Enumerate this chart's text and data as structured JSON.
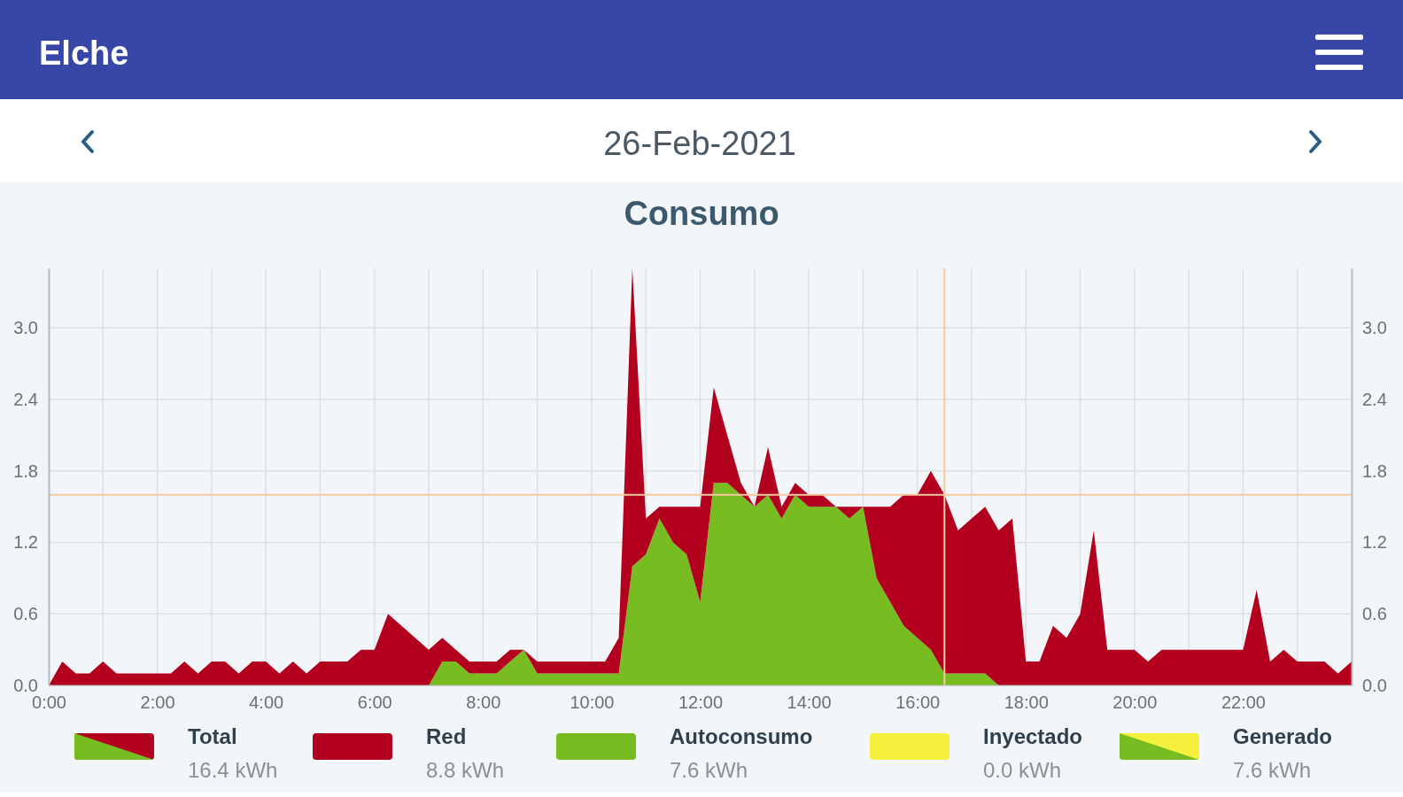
{
  "chart_data": {
    "type": "area",
    "title": "Consumo",
    "subtitle": "26-Feb-2021",
    "annotations": [
      "Elche",
      "Total",
      "16.4 kWh",
      "8.8 kWh",
      "7.6 kWh",
      "Inyectado",
      "0.0 kWh",
      "Generado",
      "7.6 kWh"
    ],
    "x": [
      0,
      0.25,
      0.5,
      0.75,
      1,
      1.25,
      1.5,
      1.75,
      2,
      2.25,
      2.5,
      2.75,
      3,
      3.25,
      3.5,
      3.75,
      4,
      4.25,
      4.5,
      4.75,
      5,
      5.25,
      5.5,
      5.75,
      6,
      6.25,
      6.5,
      6.75,
      7,
      7.25,
      7.5,
      7.75,
      8,
      8.25,
      8.5,
      8.75,
      9,
      9.25,
      9.5,
      9.75,
      10,
      10.25,
      10.5,
      10.75,
      11,
      11.25,
      11.5,
      11.75,
      12,
      12.25,
      12.5,
      12.75,
      13,
      13.25,
      13.5,
      13.75,
      14,
      14.25,
      14.5,
      14.75,
      15,
      15.25,
      15.5,
      15.75,
      16,
      16.25,
      16.5,
      16.75,
      17,
      17.25,
      17.5,
      17.75,
      18,
      18.25,
      18.5,
      18.75,
      19,
      19.25,
      19.5,
      19.75,
      20,
      20.25,
      20.5,
      20.75,
      21,
      21.25,
      21.5,
      21.75,
      22,
      22.25,
      22.5,
      22.75,
      23,
      23.25,
      23.5,
      23.75,
      24
    ],
    "stacked": true,
    "series": [
      {
        "name": "Autoconsumo",
        "color": "#77bc21",
        "values": [
          0,
          0,
          0,
          0,
          0,
          0,
          0,
          0,
          0,
          0,
          0,
          0,
          0,
          0,
          0,
          0,
          0,
          0,
          0,
          0,
          0,
          0,
          0,
          0,
          0,
          0,
          0,
          0,
          0,
          0.2,
          0.2,
          0.1,
          0.1,
          0.1,
          0.2,
          0.3,
          0.1,
          0.1,
          0.1,
          0.1,
          0.1,
          0.1,
          0.1,
          1.0,
          1.1,
          1.4,
          1.2,
          1.1,
          0.7,
          1.7,
          1.7,
          1.6,
          1.5,
          1.6,
          1.4,
          1.6,
          1.5,
          1.5,
          1.5,
          1.4,
          1.5,
          0.9,
          0.7,
          0.5,
          0.4,
          0.3,
          0.1,
          0.1,
          0.1,
          0.1,
          0,
          0,
          0,
          0,
          0,
          0,
          0,
          0,
          0,
          0,
          0,
          0,
          0,
          0,
          0,
          0,
          0,
          0,
          0,
          0,
          0,
          0,
          0,
          0,
          0,
          0,
          0
        ]
      },
      {
        "name": "Red",
        "color": "#b2001e",
        "values": [
          0,
          0.2,
          0.1,
          0.1,
          0.2,
          0.1,
          0.1,
          0.1,
          0.1,
          0.1,
          0.2,
          0.1,
          0.2,
          0.2,
          0.1,
          0.2,
          0.2,
          0.1,
          0.2,
          0.1,
          0.2,
          0.2,
          0.2,
          0.3,
          0.3,
          0.6,
          0.5,
          0.4,
          0.3,
          0.2,
          0.1,
          0.1,
          0.1,
          0.1,
          0.1,
          0,
          0.1,
          0.1,
          0.1,
          0.1,
          0.1,
          0.1,
          0.3,
          2.5,
          0.3,
          0.1,
          0.3,
          0.4,
          0.8,
          0.8,
          0.4,
          0.1,
          0,
          0.4,
          0.1,
          0.1,
          0.1,
          0.1,
          0,
          0.1,
          0,
          0.6,
          0.8,
          1.1,
          1.2,
          1.5,
          1.5,
          1.2,
          1.3,
          1.4,
          1.3,
          1.4,
          0.2,
          0.2,
          0.5,
          0.4,
          0.6,
          1.3,
          0.3,
          0.3,
          0.3,
          0.2,
          0.3,
          0.3,
          0.3,
          0.3,
          0.3,
          0.3,
          0.3,
          0.8,
          0.2,
          0.3,
          0.2,
          0.2,
          0.2,
          0.1,
          0.2
        ]
      }
    ],
    "xlim": [
      0,
      24
    ],
    "xticks": [
      {
        "value": 0,
        "label": "0:00"
      },
      {
        "value": 1,
        "label": null
      },
      {
        "value": 2,
        "label": "2:00"
      },
      {
        "value": 3,
        "label": null
      },
      {
        "value": 4,
        "label": "4:00"
      },
      {
        "value": 5,
        "label": null
      },
      {
        "value": 6,
        "label": "6:00"
      },
      {
        "value": 7,
        "label": null
      },
      {
        "value": 8,
        "label": "8:00"
      },
      {
        "value": 9,
        "label": null
      },
      {
        "value": 10,
        "label": "10:00"
      },
      {
        "value": 11,
        "label": null
      },
      {
        "value": 12,
        "label": "12:00"
      },
      {
        "value": 13,
        "label": null
      },
      {
        "value": 14,
        "label": "14:00"
      },
      {
        "value": 15,
        "label": null
      },
      {
        "value": 16,
        "label": "16:00"
      },
      {
        "value": 17,
        "label": null
      },
      {
        "value": 18,
        "label": "18:00"
      },
      {
        "value": 19,
        "label": null
      },
      {
        "value": 20,
        "label": "20:00"
      },
      {
        "value": 21,
        "label": null
      },
      {
        "value": 22,
        "label": "22:00"
      },
      {
        "value": 23,
        "label": null
      },
      {
        "value": 24,
        "label": null
      }
    ],
    "ylim": [
      0,
      3.5
    ],
    "yticks": [
      {
        "value": 0,
        "label": "0.0"
      },
      0.6,
      1.2,
      1.8,
      2.4,
      {
        "value": 3,
        "label": "3.0"
      }
    ],
    "y2lim": [
      0,
      3.5
    ],
    "y2ticks": [
      {
        "value": 0,
        "label": "0.0"
      },
      0.6,
      1.2,
      1.8,
      2.4,
      {
        "value": 3,
        "label": "3.0"
      }
    ],
    "ref_lines": [
      {
        "axis": "y",
        "value": 1.6,
        "color": "#f8c8a0"
      },
      {
        "axis": "x",
        "value": 16.5,
        "color": "#f8c8a0"
      }
    ],
    "grid": true,
    "legend": "bottom"
  }
}
